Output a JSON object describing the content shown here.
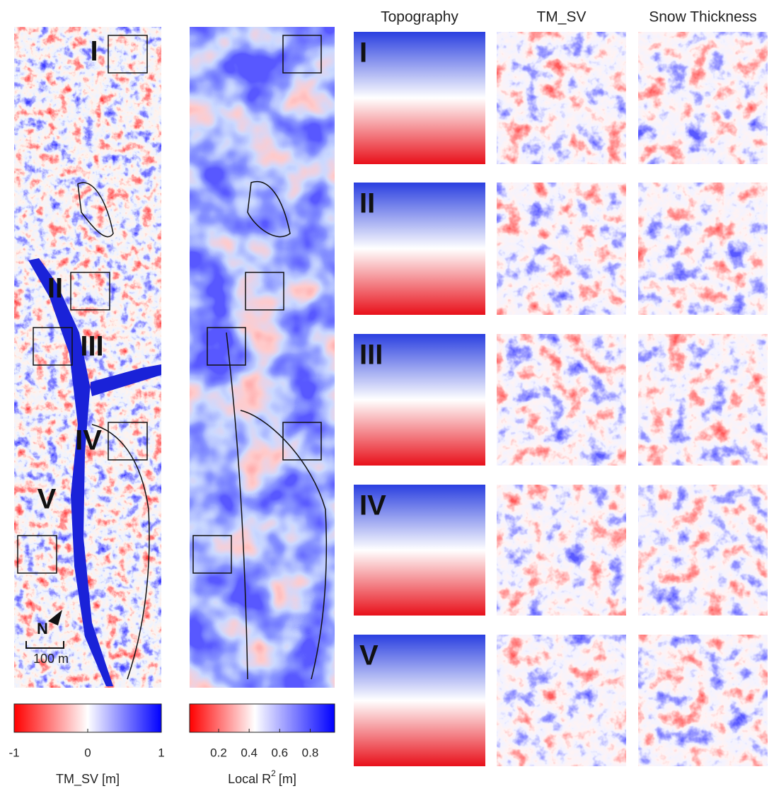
{
  "panels": {
    "column_titles": [
      "Topography",
      "TM_SV",
      "Snow Thickness"
    ],
    "row_labels": [
      "I",
      "II",
      "III",
      "IV",
      "V"
    ]
  },
  "map": {
    "region_labels": [
      "I",
      "II",
      "III",
      "IV",
      "V"
    ],
    "north": "N",
    "scale_bar": "100 m"
  },
  "colorbars": [
    {
      "label": "TM_SV [m]",
      "lim": [
        -1,
        1
      ],
      "ticks": [
        -1,
        0,
        1
      ]
    },
    {
      "label": "Local R",
      "label_sup": "2",
      "label_unit": "[m]",
      "lim": [
        0.01,
        0.96
      ],
      "ticks": [
        0.2,
        0.4,
        0.6,
        0.8
      ]
    }
  ]
}
